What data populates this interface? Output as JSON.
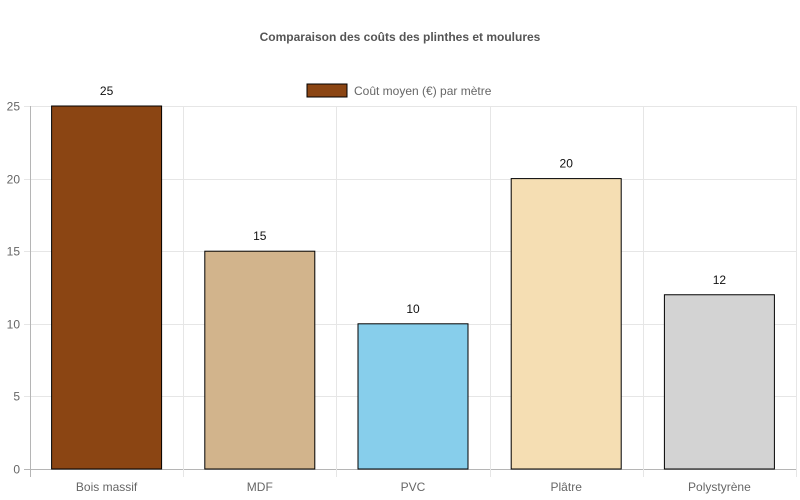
{
  "chart_data": {
    "type": "bar",
    "title": "Comparaison des coûts des plinthes et moulures",
    "xlabel": "",
    "ylabel": "",
    "categories": [
      "Bois massif",
      "MDF",
      "PVC",
      "Plâtre",
      "Polystyrène"
    ],
    "series": [
      {
        "name": "Coût moyen (€) par mètre",
        "values": [
          25,
          15,
          10,
          20,
          12
        ],
        "colors": [
          "#8B4513",
          "#D2B48C",
          "#87CEEB",
          "#F5DEB3",
          "#D3D3D3"
        ]
      }
    ],
    "ylim": [
      0,
      25
    ],
    "yticks": [
      0,
      5,
      10,
      15,
      20,
      25
    ],
    "grid": true,
    "legend": "top-center",
    "bar_border_color": "#000000"
  }
}
